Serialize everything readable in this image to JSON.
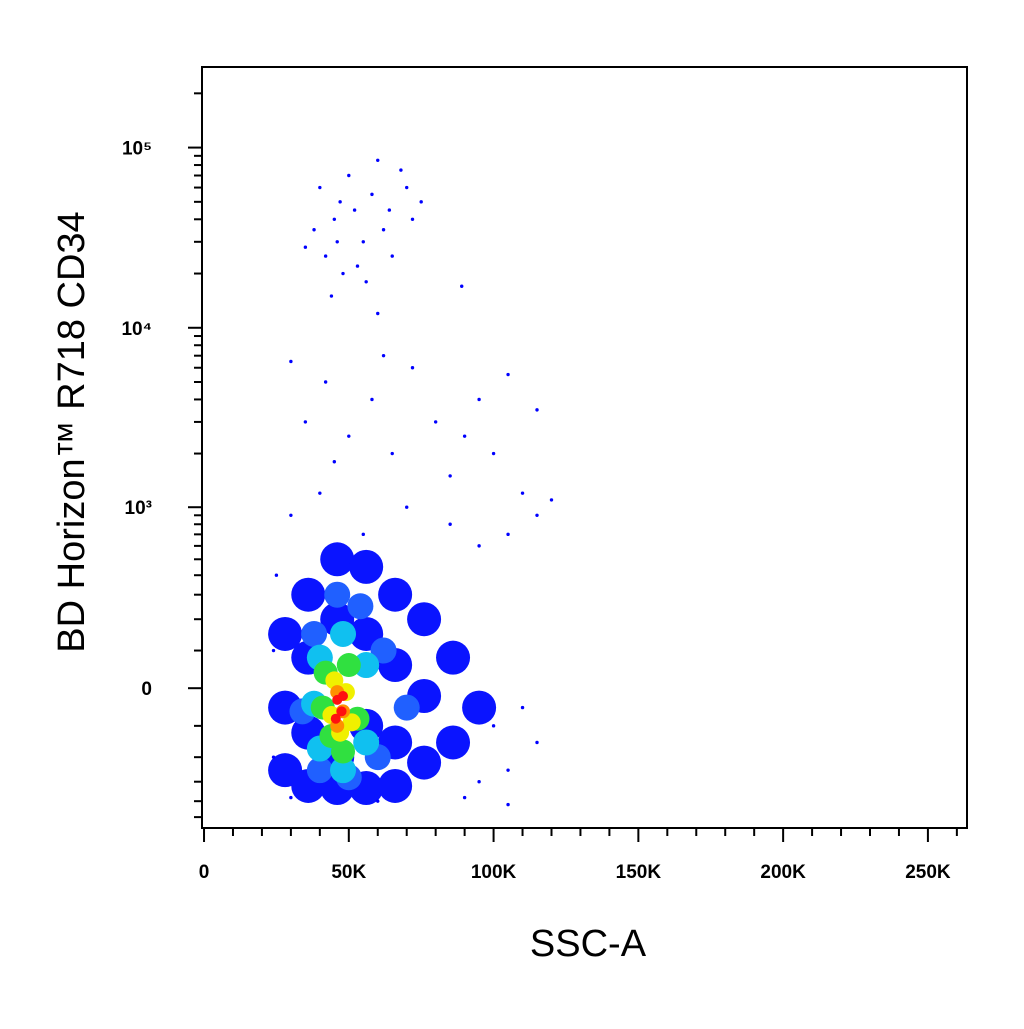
{
  "chart_data": {
    "type": "scatter",
    "xlabel": "SSC-A",
    "ylabel": "BD Horizon™ R718   CD34",
    "xlim": [
      -700,
      263500
    ],
    "ylim": [
      -580,
      280000
    ],
    "yscale": "asinh",
    "ylinthresh": 200,
    "xticks": [
      0,
      {
        "value": 50000,
        "label": "50K"
      },
      {
        "value": 100000,
        "label": "100K"
      },
      {
        "value": 150000,
        "label": "150K"
      },
      {
        "value": 200000,
        "label": "200K"
      },
      {
        "value": 250000,
        "label": "250K"
      }
    ],
    "xminorticks": [
      10000,
      20000,
      30000,
      40000,
      60000,
      70000,
      80000,
      90000,
      110000,
      120000,
      130000,
      140000,
      160000,
      170000,
      180000,
      190000,
      210000,
      220000,
      230000,
      240000,
      260000
    ],
    "yticks": [
      0,
      {
        "value": 1000,
        "label": "10³"
      },
      {
        "value": 10000,
        "label": "10⁴"
      },
      {
        "value": 100000,
        "label": "10⁵"
      }
    ],
    "yminorticks": [
      -500,
      -400,
      -300,
      -200,
      -100,
      100,
      200,
      300,
      400,
      500,
      600,
      700,
      800,
      900,
      2000,
      3000,
      4000,
      5000,
      6000,
      7000,
      8000,
      9000,
      20000,
      30000,
      40000,
      50000,
      60000,
      70000,
      80000,
      90000,
      200000
    ],
    "series": [
      {
        "color": "#0a14ff",
        "x": [
          28000,
          28000,
          28000,
          36000,
          36000,
          36000,
          36000,
          46000,
          46000,
          46000,
          46000,
          56000,
          56000,
          56000,
          56000,
          66000,
          66000,
          66000,
          66000,
          76000,
          76000,
          76000,
          86000,
          86000,
          95000
        ],
        "y": [
          150,
          -50,
          -250,
          300,
          80,
          -120,
          -320,
          500,
          200,
          -200,
          -330,
          450,
          150,
          -100,
          -330,
          300,
          60,
          -150,
          -320,
          200,
          -20,
          -220,
          80,
          -150,
          -50
        ]
      },
      {
        "color": "#0000ff",
        "x": [
          40000,
          45000,
          50000,
          55000,
          60000,
          42000,
          48000,
          52000,
          58000,
          62000,
          65000,
          68000,
          44000,
          56000,
          72000,
          38000,
          47000,
          53000,
          60000,
          35000,
          70000,
          75000,
          89000,
          64000,
          46000,
          35000,
          42000,
          50000,
          58000,
          65000,
          72000,
          80000,
          90000,
          100000,
          105000,
          115000,
          95000,
          85000,
          62000,
          45000,
          30000,
          110000,
          120000,
          30000,
          40000,
          55000,
          70000,
          85000,
          95000,
          105000,
          115000,
          25000,
          100000,
          110000,
          115000,
          105000,
          95000,
          30000,
          60000,
          90000,
          105000,
          24000,
          24000
        ],
        "y": [
          60000,
          40000,
          70000,
          30000,
          85000,
          25000,
          20000,
          45000,
          55000,
          35000,
          25000,
          75000,
          15000,
          18000,
          40000,
          35000,
          50000,
          22000,
          12000,
          28000,
          60000,
          50000,
          17000,
          45000,
          30000,
          3000,
          5000,
          2500,
          4000,
          2000,
          6000,
          3000,
          2500,
          2000,
          5500,
          3500,
          4000,
          1500,
          7000,
          1800,
          6500,
          1200,
          1100,
          900,
          1200,
          700,
          1000,
          800,
          600,
          700,
          900,
          400,
          -100,
          -50,
          -150,
          -250,
          -300,
          -380,
          -400,
          -380,
          -420,
          100,
          -200
        ]
      },
      {
        "color": "#2060ff",
        "x": [
          38000,
          46000,
          54000,
          62000,
          60000,
          40000,
          50000,
          34000,
          70000
        ],
        "y": [
          150,
          300,
          250,
          100,
          -200,
          -250,
          -280,
          -60,
          -50
        ]
      },
      {
        "color": "#10c0f0",
        "x": [
          40000,
          48000,
          56000,
          56000,
          40000,
          48000,
          38000
        ],
        "y": [
          80,
          150,
          60,
          -150,
          -170,
          -250,
          -40
        ]
      },
      {
        "color": "#30e040",
        "x": [
          42000,
          50000,
          53000,
          44000,
          48000,
          41000
        ],
        "y": [
          40,
          60,
          -80,
          -130,
          -180,
          -50
        ]
      },
      {
        "color": "#f0f000",
        "x": [
          45000,
          49000,
          47000,
          44000,
          51000
        ],
        "y": [
          20,
          -10,
          -120,
          -70,
          -90
        ]
      },
      {
        "color": "#ff9000",
        "x": [
          46000,
          48000,
          46000
        ],
        "y": [
          -10,
          -60,
          -100
        ]
      },
      {
        "color": "#ff1010",
        "x": [
          46000,
          47500,
          45500,
          48000
        ],
        "y": [
          -30,
          -60,
          -80,
          -20
        ]
      }
    ]
  }
}
